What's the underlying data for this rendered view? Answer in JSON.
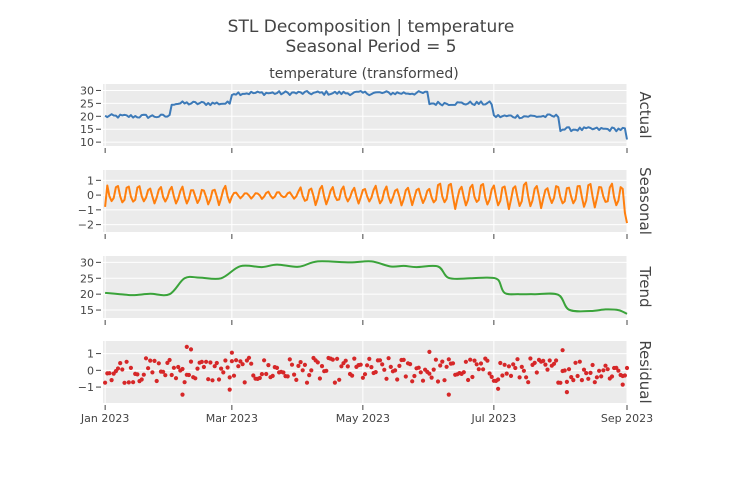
{
  "chart_data": {
    "type": "line",
    "title_lines": [
      "STL Decomposition | temperature",
      "Seasonal Period = 5"
    ],
    "subtitle": "temperature (transformed)",
    "x_range": [
      "2022-12-31",
      "2023-09-01"
    ],
    "x_ticks": [
      {
        "date": "2023-01-01",
        "label": "Jan 2023"
      },
      {
        "date": "2023-03-01",
        "label": "Mar 2023"
      },
      {
        "date": "2023-05-01",
        "label": "May 2023"
      },
      {
        "date": "2023-07-01",
        "label": "Jul 2023"
      },
      {
        "date": "2023-09-01",
        "label": "Sep 2023"
      }
    ],
    "panels": [
      {
        "name": "Actual",
        "color": "#3d7ab8",
        "mode": "line",
        "ylim": [
          8.5,
          32.5
        ],
        "yticks": [
          10,
          15,
          20,
          25,
          30
        ],
        "tick_labels": [
          "10",
          "15",
          "20",
          "25",
          "30"
        ],
        "segments": [
          {
            "start": "2023-01-01",
            "end": "2023-01-31",
            "level": 20
          },
          {
            "start": "2023-02-01",
            "end": "2023-02-28",
            "level": 25
          },
          {
            "start": "2023-03-01",
            "end": "2023-05-31",
            "level": 29
          },
          {
            "start": "2023-06-01",
            "end": "2023-06-30",
            "level": 25
          },
          {
            "start": "2023-07-01",
            "end": "2023-07-31",
            "level": 20
          },
          {
            "start": "2023-08-01",
            "end": "2023-08-31",
            "level": 15
          }
        ],
        "end_value": 11
      },
      {
        "name": "Seasonal",
        "color": "#ff7f0e",
        "mode": "line",
        "ylim": [
          -2.5,
          1.7
        ],
        "yticks": [
          -2,
          -1,
          0,
          1
        ],
        "tick_labels": [
          "−2",
          "−1",
          "0",
          "1"
        ],
        "amplitude_by_period": [
          0.6,
          0.55,
          0.2,
          0.55,
          0.6,
          0.75
        ],
        "end_value": -1.9
      },
      {
        "name": "Trend",
        "color": "#3aa33a",
        "mode": "line",
        "ylim": [
          12.5,
          32
        ],
        "yticks": [
          15,
          20,
          25,
          30
        ],
        "tick_labels": [
          "15",
          "20",
          "25",
          "30"
        ],
        "knots": [
          [
            "2023-01-01",
            20.4
          ],
          [
            "2023-01-08",
            20.0
          ],
          [
            "2023-01-14",
            19.7
          ],
          [
            "2023-01-22",
            20.1
          ],
          [
            "2023-01-31",
            20.0
          ],
          [
            "2023-02-07",
            25.0
          ],
          [
            "2023-02-14",
            25.2
          ],
          [
            "2023-02-24",
            25.0
          ],
          [
            "2023-03-05",
            28.8
          ],
          [
            "2023-03-15",
            28.5
          ],
          [
            "2023-03-22",
            29.3
          ],
          [
            "2023-04-01",
            28.6
          ],
          [
            "2023-04-10",
            30.3
          ],
          [
            "2023-04-25",
            30.0
          ],
          [
            "2023-05-05",
            30.3
          ],
          [
            "2023-05-14",
            28.7
          ],
          [
            "2023-05-20",
            28.9
          ],
          [
            "2023-05-26",
            28.5
          ],
          [
            "2023-06-05",
            28.7
          ],
          [
            "2023-06-10",
            25.1
          ],
          [
            "2023-06-20",
            25.0
          ],
          [
            "2023-06-28",
            25.2
          ],
          [
            "2023-07-03",
            24.5
          ],
          [
            "2023-07-06",
            20.4
          ],
          [
            "2023-07-13",
            20.0
          ],
          [
            "2023-07-20",
            20.0
          ],
          [
            "2023-07-31",
            19.8
          ],
          [
            "2023-08-05",
            15.1
          ],
          [
            "2023-08-15",
            14.7
          ],
          [
            "2023-08-22",
            15.2
          ],
          [
            "2023-08-28",
            15.0
          ],
          [
            "2023-09-01",
            13.8
          ]
        ]
      },
      {
        "name": "Residual",
        "color": "#d62728",
        "mode": "markers",
        "ylim": [
          -1.95,
          1.75
        ],
        "yticks": [
          -1,
          0,
          1
        ],
        "tick_labels": [
          "−1",
          "0",
          "1"
        ],
        "spread": 0.75,
        "outliers": [
          [
            "2023-02-08",
            1.4
          ],
          [
            "2023-02-10",
            1.25
          ],
          [
            "2023-02-06",
            -1.45
          ],
          [
            "2023-02-28",
            -1.15
          ],
          [
            "2023-03-01",
            1.05
          ],
          [
            "2023-06-10",
            -1.45
          ],
          [
            "2023-06-01",
            1.1
          ],
          [
            "2023-08-02",
            1.2
          ],
          [
            "2023-08-04",
            -1.3
          ],
          [
            "2023-07-03",
            -1.1
          ],
          [
            "2023-08-30",
            -0.85
          ]
        ]
      }
    ]
  }
}
